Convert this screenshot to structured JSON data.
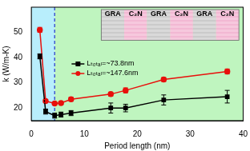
{
  "chart_data": {
    "type": "line",
    "x_label": "Period length (nm)",
    "y_label": "k (W/m-K)",
    "xlim": [
      0,
      40
    ],
    "xticks": [
      0,
      10,
      20,
      30,
      40
    ],
    "ylim": [
      15,
      60
    ],
    "yticks": [
      20,
      30,
      40,
      50
    ],
    "grid": false,
    "legend": "left",
    "shaded_regions": [
      {
        "xlim": [
          0,
          4.4
        ],
        "color": "#b8eefc"
      },
      {
        "xlim": [
          4.4,
          40
        ],
        "color": "#bff5bf"
      }
    ],
    "annotations": [
      "GRA",
      "C₂N",
      "GRA",
      "C₂N",
      "GRA",
      "C₂N"
    ],
    "series": [
      {
        "name": "Lₜₒₜₐₗ=~73.8nm",
        "color": "#000000",
        "marker": "square",
        "x": [
          1.6,
          2.7,
          4.4,
          5.6,
          7.5,
          15,
          17.8,
          25,
          37
        ],
        "values": [
          40.5,
          18.6,
          17.0,
          17.4,
          18.0,
          20.0,
          20.0,
          23.2,
          24.5
        ],
        "errors": [
          1.0,
          1.0,
          1.0,
          1.0,
          1.0,
          2.0,
          1.5,
          2.0,
          2.5
        ]
      },
      {
        "name": "Lₜₒₜₐₗ=~147.6nm",
        "color": "#e8100c",
        "marker": "circle",
        "x": [
          1.6,
          2.7,
          4.4,
          5.6,
          7.5,
          15,
          17.8,
          25,
          37
        ],
        "values": [
          51.0,
          22.8,
          21.8,
          22.0,
          23.5,
          25.5,
          27.0,
          31.3,
          34.5
        ],
        "errors": [
          1.0,
          0.6,
          0.6,
          0.6,
          0.8,
          0.8,
          1.0,
          0.8,
          1.0
        ]
      }
    ]
  }
}
